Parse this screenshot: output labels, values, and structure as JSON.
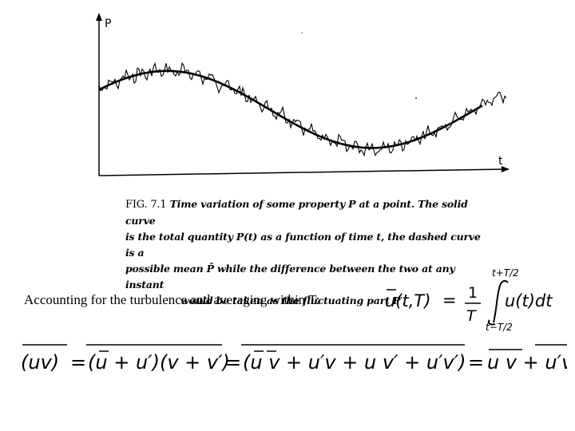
{
  "figure": {
    "y_axis_label": "P",
    "x_axis_label": "t",
    "caption_label": "FIG. 7.1",
    "caption_lines": [
      "Time variation of some property P at a point. The solid curve",
      "is the total quantity P(t) as a function of time t, the dashed curve is a",
      "possible mean P̄ while the difference between the two at any instant",
      "would be taken as the fluctuating part P′."
    ]
  },
  "statement": "Accounting for the turbulence and averaging within T:",
  "equation1": {
    "lhs": "u(t,T)",
    "equals": "=",
    "fraction_numerator": "1",
    "fraction_denominator": "T",
    "integrand": "u(t)dt",
    "upper_limit": "t+T/2",
    "lower_limit": "t−T/2"
  },
  "equation2": {
    "terms": [
      "(uv)",
      "=",
      "(u + u′)(v + v′)",
      "=",
      "(u v + u′v + u v′ + u′v′)",
      "=",
      "u v + u′v′"
    ]
  }
}
